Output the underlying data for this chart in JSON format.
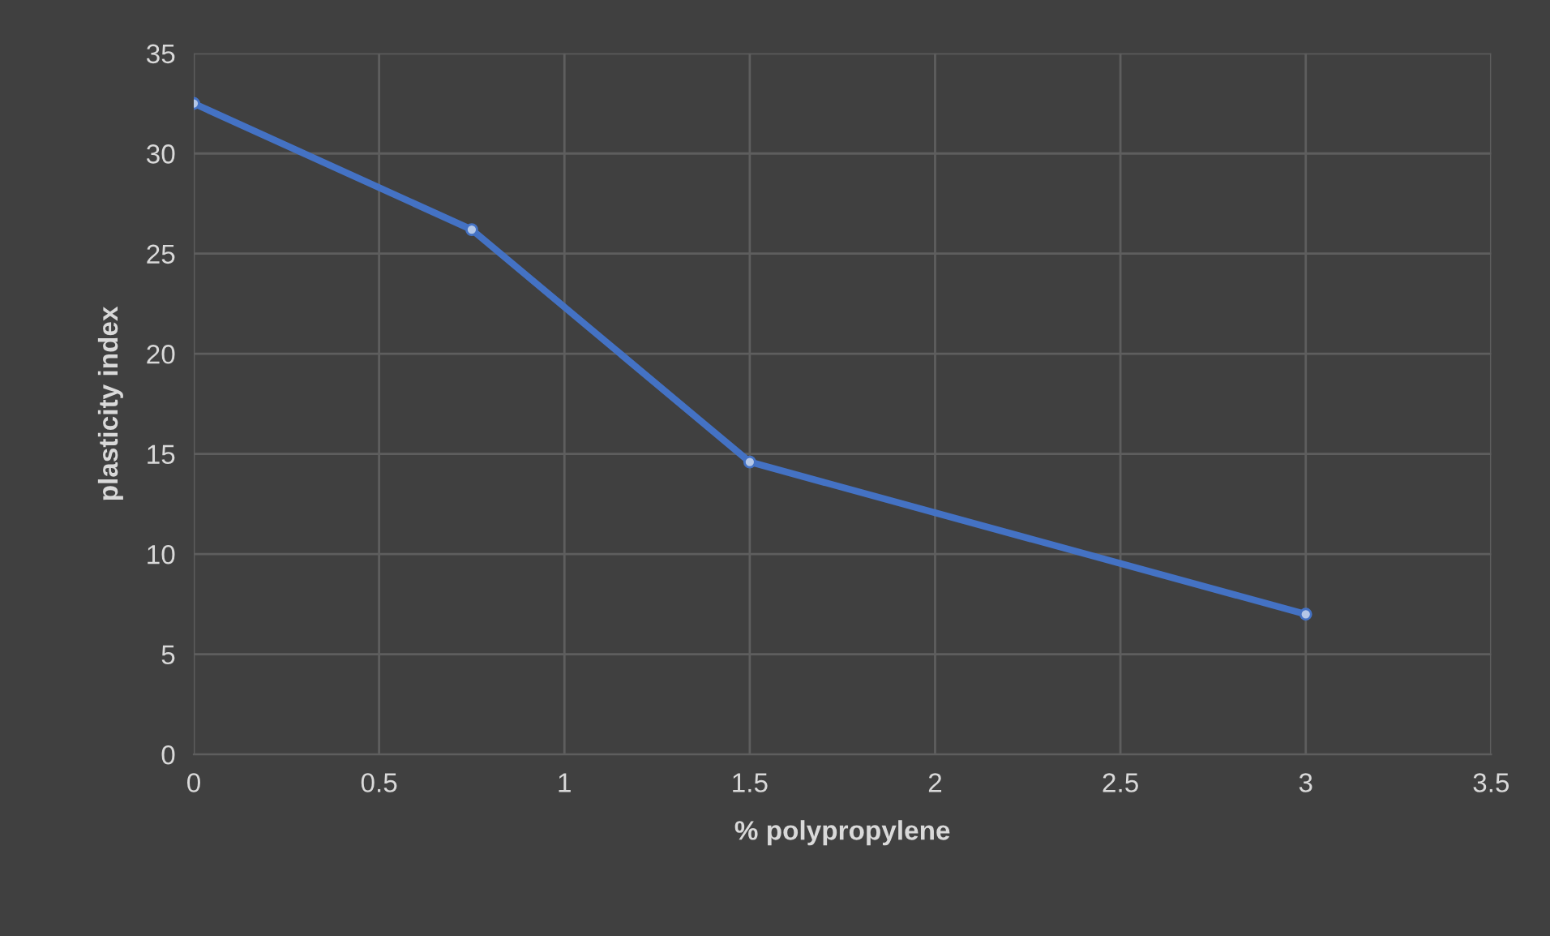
{
  "chart_data": {
    "type": "line",
    "xlabel": "% polypropylene",
    "ylabel": "plasticity index",
    "x": [
      0,
      0.75,
      1.5,
      3
    ],
    "series": [
      {
        "color": "#4472c4",
        "values": [
          32.5,
          26.2,
          14.6,
          7
        ]
      }
    ],
    "xlim": [
      0,
      3.5
    ],
    "xticks": [
      0,
      0.5,
      1,
      1.5,
      2,
      2.5,
      3,
      3.5
    ],
    "ylim": [
      0,
      35
    ],
    "yticks": [
      0,
      5,
      10,
      15,
      20,
      25,
      30,
      35
    ],
    "grid": true,
    "marker": "circle",
    "line_style": "solid",
    "legend": false
  }
}
